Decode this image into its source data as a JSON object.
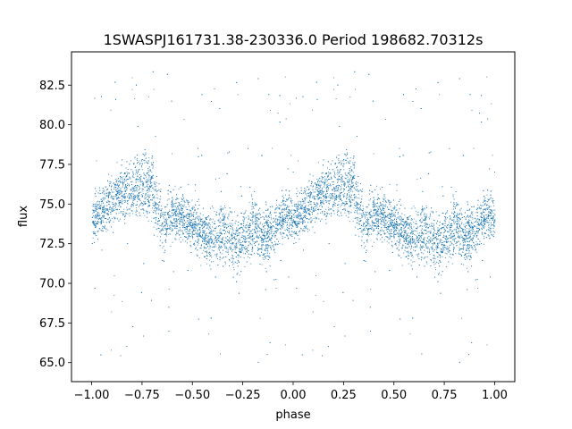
{
  "chart_data": {
    "type": "scatter",
    "title": "1SWASPJ161731.38-230336.0 Period 198682.70312s",
    "xlabel": "phase",
    "ylabel": "flux",
    "xlim": [
      -1.1,
      1.1
    ],
    "ylim": [
      63.8,
      84.6
    ],
    "grid": false,
    "point_color": "#1f77b4",
    "x_ticks": [
      -1.0,
      -0.75,
      -0.5,
      -0.25,
      0.0,
      0.25,
      0.5,
      0.75,
      1.0
    ],
    "x_tick_labels": [
      "−1.00",
      "−0.75",
      "−0.50",
      "−0.25",
      "0.00",
      "0.25",
      "0.50",
      "0.75",
      "1.00"
    ],
    "y_ticks": [
      65.0,
      67.5,
      70.0,
      72.5,
      75.0,
      77.5,
      80.0,
      82.5
    ],
    "y_tick_labels": [
      "65.0",
      "67.5",
      "70.0",
      "72.5",
      "75.0",
      "77.5",
      "80.0",
      "82.5"
    ],
    "phase_curve": {
      "description_phase": [
        0.0,
        0.05,
        0.1,
        0.15,
        0.2,
        0.25,
        0.3,
        0.35,
        0.4,
        0.45,
        0.5,
        0.55,
        0.6,
        0.65,
        0.7,
        0.75,
        0.8,
        0.85,
        0.9,
        0.95,
        1.0
      ],
      "flux_center": [
        74.0,
        74.6,
        75.2,
        75.8,
        76.0,
        76.3,
        76.0,
        73.5,
        74.5,
        74.2,
        73.6,
        73.2,
        73.0,
        73.3,
        72.5,
        72.8,
        73.8,
        72.8,
        73.5,
        74.3,
        74.0
      ],
      "flux_spread": [
        1.2,
        1.2,
        1.3,
        1.5,
        1.5,
        1.6,
        1.8,
        1.3,
        1.2,
        1.3,
        1.2,
        1.2,
        1.4,
        1.6,
        1.6,
        1.5,
        1.5,
        1.4,
        1.5,
        1.3,
        1.2
      ]
    }
  }
}
